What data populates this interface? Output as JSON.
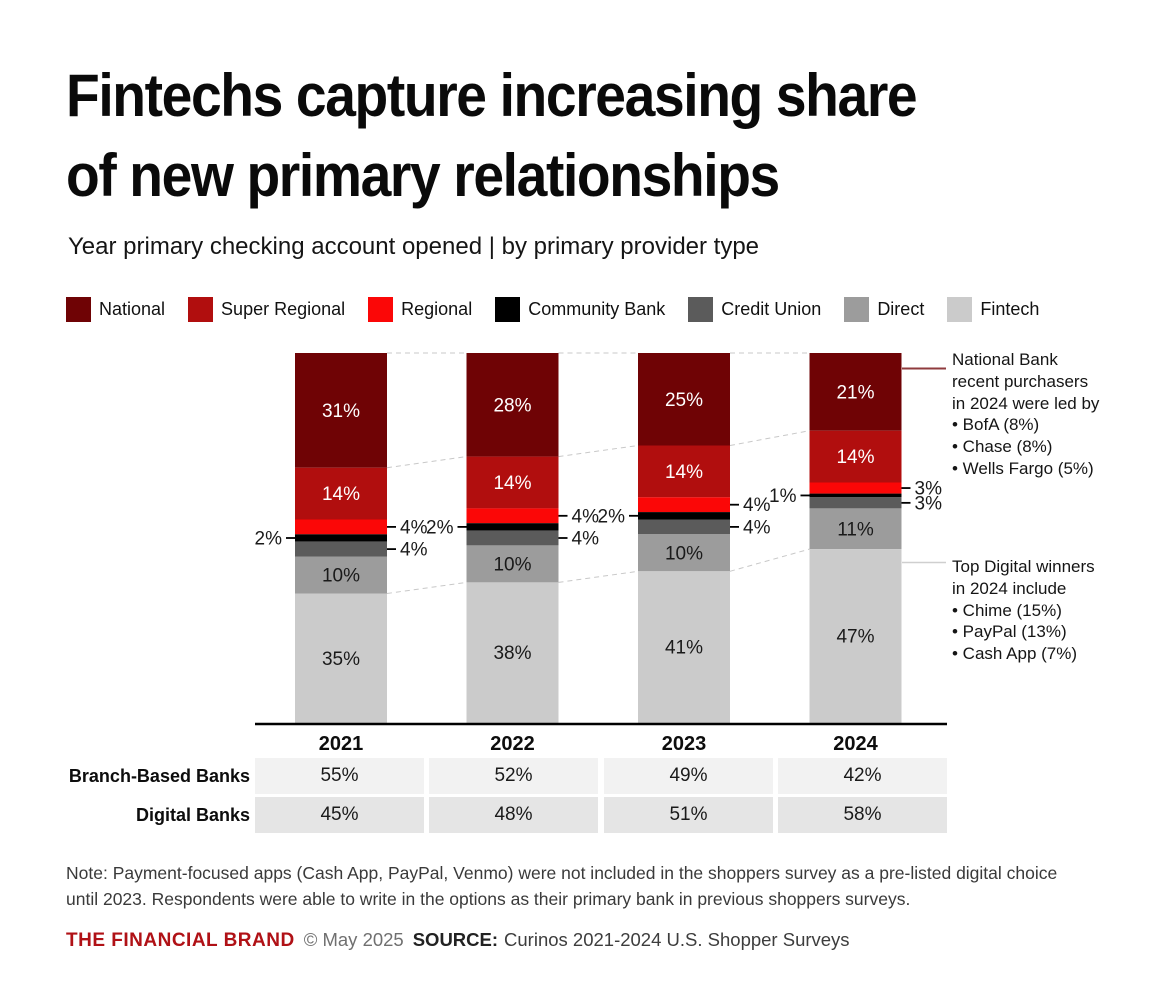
{
  "title": {
    "lines": [
      "Fintechs capture increasing share",
      "of new primary relationships"
    ]
  },
  "subtitle": "Year primary checking account opened | by primary provider type",
  "legend": [
    {
      "label": "National",
      "color": "#6F0305"
    },
    {
      "label": "Super Regional",
      "color": "#B10E0E"
    },
    {
      "label": "Regional",
      "color": "#FB0707"
    },
    {
      "label": "Community Bank",
      "color": "#000000"
    },
    {
      "label": "Credit Union",
      "color": "#5B5B5B"
    },
    {
      "label": "Direct",
      "color": "#9C9C9C"
    },
    {
      "label": "Fintech",
      "color": "#CBCBCB"
    }
  ],
  "chart_data": {
    "type": "bar",
    "stacked": true,
    "unit": "%",
    "categories": [
      "2021",
      "2022",
      "2023",
      "2024"
    ],
    "series": [
      {
        "name": "National",
        "color": "#6F0305",
        "values": [
          31,
          28,
          25,
          21
        ],
        "label_mode": "inside",
        "label_color": "#ffffff"
      },
      {
        "name": "Super Regional",
        "color": "#B10E0E",
        "values": [
          14,
          14,
          14,
          14
        ],
        "label_mode": "inside",
        "label_color": "#ffffff"
      },
      {
        "name": "Regional",
        "color": "#FB0707",
        "values": [
          4,
          4,
          4,
          3
        ],
        "label_mode": "leader-right",
        "label_color": "#1a1a1a"
      },
      {
        "name": "Community Bank",
        "color": "#000000",
        "values": [
          2,
          2,
          2,
          1
        ],
        "label_mode": "leader-left",
        "label_color": "#1a1a1a"
      },
      {
        "name": "Credit Union",
        "color": "#5B5B5B",
        "values": [
          4,
          4,
          4,
          3
        ],
        "label_mode": "leader-right",
        "label_color": "#1a1a1a"
      },
      {
        "name": "Direct",
        "color": "#9C9C9C",
        "values": [
          10,
          10,
          10,
          11
        ],
        "label_mode": "inside",
        "label_color": "#1a1a1a"
      },
      {
        "name": "Fintech",
        "color": "#CBCBCB",
        "values": [
          35,
          38,
          41,
          47
        ],
        "label_mode": "inside",
        "label_color": "#1a1a1a"
      }
    ],
    "connector_color": "#C8C8C8",
    "axis_color": "#000000",
    "ylim": [
      0,
      100
    ],
    "grid": false,
    "legend_position": "top"
  },
  "annotations": {
    "national": {
      "line_color": "#8F3B3E",
      "lines": [
        "National Bank",
        "recent purchasers",
        "in 2024 were led by",
        "• BofA (8%)",
        "• Chase (8%)",
        "• Wells Fargo (5%)"
      ]
    },
    "digital": {
      "line_color": "#CFCFCF",
      "lines": [
        "Top Digital winners",
        "in 2024 include",
        "• Chime (15%)",
        "• PayPal (13%)",
        "• Cash App (7%)"
      ]
    }
  },
  "table": {
    "columns": [
      "2021",
      "2022",
      "2023",
      "2024"
    ],
    "rows": [
      {
        "label": "Branch-Based Banks",
        "values": [
          "55%",
          "52%",
          "49%",
          "42%"
        ],
        "bg": "#F2F2F2"
      },
      {
        "label": "Digital Banks",
        "values": [
          "45%",
          "48%",
          "51%",
          "58%"
        ],
        "bg": "#E5E5E5"
      }
    ]
  },
  "note": {
    "lines": [
      "Note: Payment-focused apps (Cash App, PayPal, Venmo) were not included in the shoppers survey as a pre-listed digital choice",
      "until 2023. Respondents were able to write in the options as their primary bank in previous shoppers surveys."
    ]
  },
  "footer": {
    "brand": "THE FINANCIAL BRAND",
    "brand_color": "#B01116",
    "copyright": "© May 2025",
    "source_label": "SOURCE:",
    "source_text": "Curinos 2021-2024 U.S. Shopper Surveys"
  }
}
